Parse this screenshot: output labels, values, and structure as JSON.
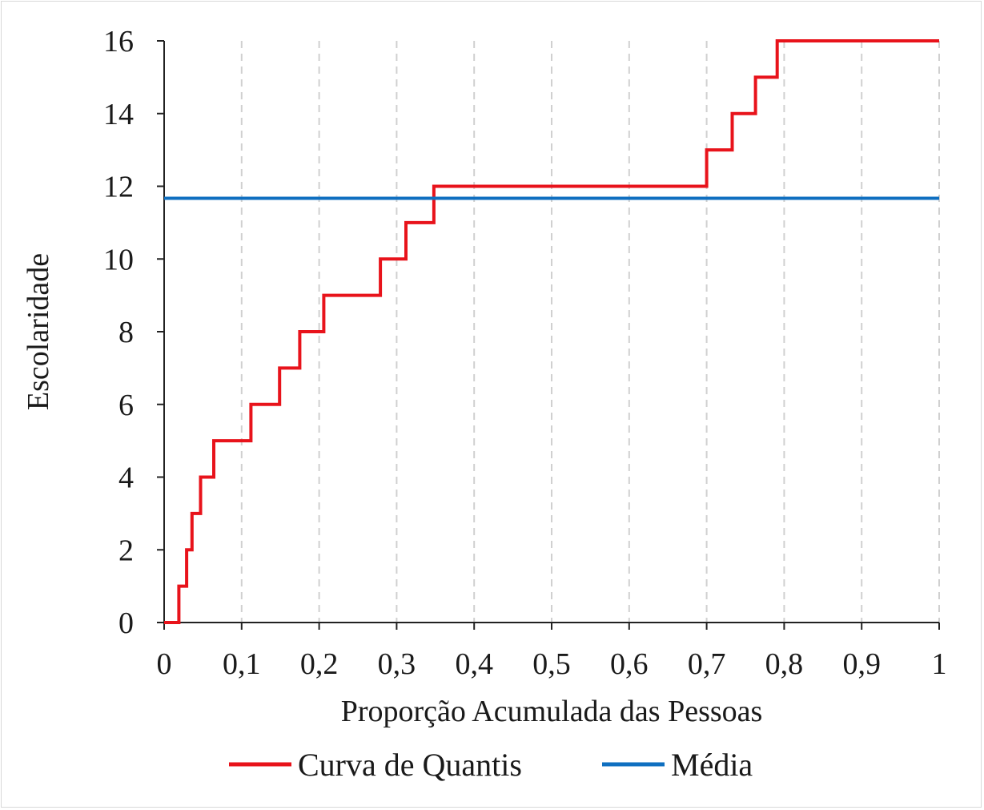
{
  "chart_data": {
    "type": "line",
    "title": "",
    "xlabel": "Proporção Acumulada das Pessoas",
    "ylabel": "Escolaridade",
    "xlim": [
      0,
      1
    ],
    "ylim": [
      0,
      16
    ],
    "x_ticks": [
      0,
      0.1,
      0.2,
      0.3,
      0.4,
      0.5,
      0.6,
      0.7,
      0.8,
      0.9,
      1
    ],
    "x_tick_labels": [
      "0",
      "0,1",
      "0,2",
      "0,3",
      "0,4",
      "0,5",
      "0,6",
      "0,7",
      "0,8",
      "0,9",
      "1"
    ],
    "y_ticks": [
      0,
      2,
      4,
      6,
      8,
      10,
      12,
      14,
      16
    ],
    "y_tick_labels": [
      "0",
      "2",
      "4",
      "6",
      "8",
      "10",
      "12",
      "14",
      "16"
    ],
    "grid": "vertical dashed",
    "legend_position": "bottom",
    "series": [
      {
        "name": "Curva de Quantis",
        "color": "#e8131b",
        "step": true,
        "points": [
          [
            0,
            0
          ],
          [
            0.019,
            0
          ],
          [
            0.019,
            1
          ],
          [
            0.029,
            1
          ],
          [
            0.029,
            2
          ],
          [
            0.036,
            2
          ],
          [
            0.036,
            3
          ],
          [
            0.047,
            3
          ],
          [
            0.047,
            4
          ],
          [
            0.064,
            4
          ],
          [
            0.064,
            5
          ],
          [
            0.112,
            5
          ],
          [
            0.112,
            6
          ],
          [
            0.149,
            6
          ],
          [
            0.149,
            7
          ],
          [
            0.175,
            7
          ],
          [
            0.175,
            8
          ],
          [
            0.206,
            8
          ],
          [
            0.206,
            9
          ],
          [
            0.279,
            9
          ],
          [
            0.279,
            10
          ],
          [
            0.312,
            10
          ],
          [
            0.312,
            11
          ],
          [
            0.348,
            11
          ],
          [
            0.348,
            12
          ],
          [
            0.7,
            12
          ],
          [
            0.7,
            13
          ],
          [
            0.733,
            13
          ],
          [
            0.733,
            14
          ],
          [
            0.763,
            14
          ],
          [
            0.763,
            15
          ],
          [
            0.791,
            15
          ],
          [
            0.791,
            16
          ],
          [
            1,
            16
          ]
        ]
      },
      {
        "name": "Média",
        "color": "#0f6fc0",
        "points": [
          [
            0,
            11.67
          ],
          [
            1,
            11.67
          ]
        ]
      }
    ]
  }
}
